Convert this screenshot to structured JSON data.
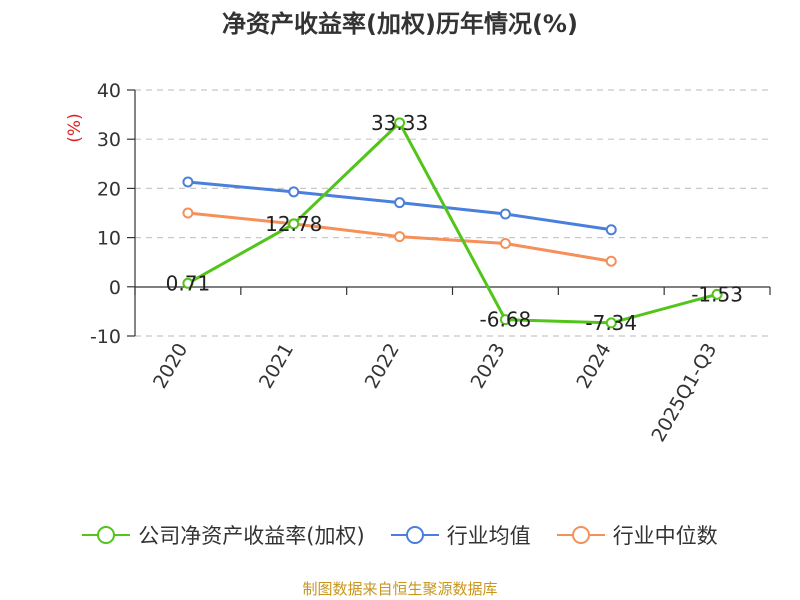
{
  "chart_data": {
    "type": "line",
    "title": "净资产收益率(加权)历年情况(%)",
    "ylabel": "(%)",
    "xlabel": "",
    "categories": [
      "2020",
      "2021",
      "2022",
      "2023",
      "2024",
      "2025Q1-Q3"
    ],
    "ylim": [
      -10,
      40
    ],
    "yticks": [
      -10,
      0,
      10,
      20,
      30,
      40
    ],
    "grid": true,
    "series": [
      {
        "name": "公司净资产收益率(加权)",
        "color": "#52c41a",
        "values": [
          0.71,
          12.78,
          33.33,
          -6.68,
          -7.34,
          -1.53
        ],
        "labels": [
          "0.71",
          "12.78",
          "33.33",
          "-6.68",
          "-7.34",
          "-1.53"
        ]
      },
      {
        "name": "行业均值",
        "color": "#4a7fdb",
        "values": [
          21.3,
          19.3,
          17.1,
          14.8,
          11.6,
          null
        ]
      },
      {
        "name": "行业中位数",
        "color": "#f5905a",
        "values": [
          15.0,
          12.8,
          10.2,
          8.8,
          5.2,
          null
        ]
      }
    ],
    "legend_position": "bottom"
  },
  "source_note": "制图数据来自恒生聚源数据库"
}
